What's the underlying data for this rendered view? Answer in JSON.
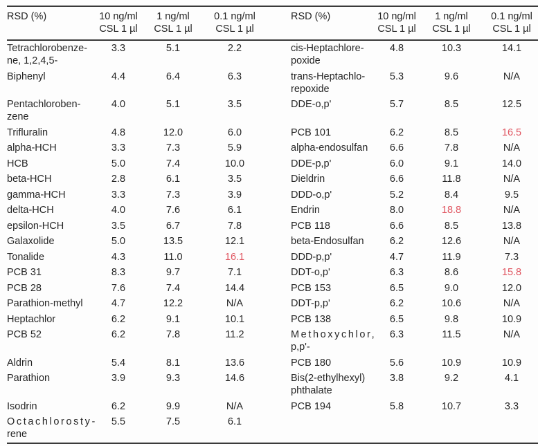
{
  "table": {
    "accent_red": "#e05560",
    "text_color": "#262626",
    "rule_color": "#3a3a3a",
    "header": {
      "rsd_label": "RSD (%)",
      "concentration_cols": [
        {
          "line1": "10 ng/ml",
          "line2": "CSL 1 µl"
        },
        {
          "line1": "1 ng/ml",
          "line2": "CSL 1 µl"
        },
        {
          "line1": "0.1 ng/ml",
          "line2": "CSL 1 µl"
        }
      ]
    },
    "rows": [
      {
        "left": {
          "name": "Tetrachlorobenze-\nne, 1,2,4,5-",
          "values": [
            "3.3",
            "5.1",
            "2.2"
          ],
          "red": []
        },
        "right": {
          "name": "cis-Heptachlore-\npoxide",
          "values": [
            "4.8",
            "10.3",
            "14.1"
          ],
          "red": []
        }
      },
      {
        "left": {
          "name": "Biphenyl",
          "values": [
            "4.4",
            "6.4",
            "6.3"
          ],
          "red": []
        },
        "right": {
          "name": "trans-Heptachlo-\nrepoxide",
          "values": [
            "5.3",
            "9.6",
            "N/A"
          ],
          "red": []
        }
      },
      {
        "left": {
          "name": "Pentachloroben-\nzene",
          "values": [
            "4.0",
            "5.1",
            "3.5"
          ],
          "red": []
        },
        "right": {
          "name": "DDE-o,p'",
          "values": [
            "5.7",
            "8.5",
            "12.5"
          ],
          "red": []
        }
      },
      {
        "left": {
          "name": "Trifluralin",
          "values": [
            "4.8",
            "12.0",
            "6.0"
          ],
          "red": []
        },
        "right": {
          "name": "PCB 101",
          "values": [
            "6.2",
            "8.5",
            "16.5"
          ],
          "red": [
            2
          ]
        }
      },
      {
        "left": {
          "name": "alpha-HCH",
          "values": [
            "3.3",
            "7.3",
            "5.9"
          ],
          "red": []
        },
        "right": {
          "name": "alpha-endosulfan",
          "values": [
            "6.6",
            "7.8",
            "N/A"
          ],
          "red": []
        }
      },
      {
        "left": {
          "name": "HCB",
          "values": [
            "5.0",
            "7.4",
            "10.0"
          ],
          "red": []
        },
        "right": {
          "name": "DDE-p,p'",
          "values": [
            "6.0",
            "9.1",
            "14.0"
          ],
          "red": []
        }
      },
      {
        "left": {
          "name": "beta-HCH",
          "values": [
            "2.8",
            "6.1",
            "3.5"
          ],
          "red": []
        },
        "right": {
          "name": "Dieldrin",
          "values": [
            "6.6",
            "11.8",
            "N/A"
          ],
          "red": []
        }
      },
      {
        "left": {
          "name": "gamma-HCH",
          "values": [
            "3.3",
            "7.3",
            "3.9"
          ],
          "red": []
        },
        "right": {
          "name": "DDD-o,p'",
          "values": [
            "5.2",
            "8.4",
            "9.5"
          ],
          "red": []
        }
      },
      {
        "left": {
          "name": "delta-HCH",
          "values": [
            "4.0",
            "7.6",
            "6.1"
          ],
          "red": []
        },
        "right": {
          "name": "Endrin",
          "values": [
            "8.0",
            "18.8",
            "N/A"
          ],
          "red": [
            1
          ]
        }
      },
      {
        "left": {
          "name": "epsilon-HCH",
          "values": [
            "3.5",
            "6.7",
            "7.8"
          ],
          "red": []
        },
        "right": {
          "name": "PCB 118",
          "values": [
            "6.6",
            "8.5",
            "13.8"
          ],
          "red": []
        }
      },
      {
        "left": {
          "name": "Galaxolide",
          "values": [
            "5.0",
            "13.5",
            "12.1"
          ],
          "red": []
        },
        "right": {
          "name": "beta-Endosulfan",
          "values": [
            "6.2",
            "12.6",
            "N/A"
          ],
          "red": []
        }
      },
      {
        "left": {
          "name": "Tonalide",
          "values": [
            "4.3",
            "11.0",
            "16.1"
          ],
          "red": [
            2
          ]
        },
        "right": {
          "name": "DDD-p,p'",
          "values": [
            "4.7",
            "11.9",
            "7.3"
          ],
          "red": []
        }
      },
      {
        "left": {
          "name": "PCB 31",
          "values": [
            "8.3",
            "9.7",
            "7.1"
          ],
          "red": []
        },
        "right": {
          "name": "DDT-o,p'",
          "values": [
            "6.3",
            "8.6",
            "15.8"
          ],
          "red": [
            2
          ]
        }
      },
      {
        "left": {
          "name": "PCB 28",
          "values": [
            "7.6",
            "7.4",
            "14.4"
          ],
          "red": []
        },
        "right": {
          "name": "PCB 153",
          "values": [
            "6.5",
            "9.0",
            "12.0"
          ],
          "red": []
        }
      },
      {
        "left": {
          "name": "Parathion-methyl",
          "values": [
            "4.7",
            "12.2",
            "N/A"
          ],
          "red": []
        },
        "right": {
          "name": "DDT-p,p'",
          "values": [
            "6.2",
            "10.6",
            "N/A"
          ],
          "red": []
        }
      },
      {
        "left": {
          "name": "Heptachlor",
          "values": [
            "6.2",
            "9.1",
            "10.1"
          ],
          "red": []
        },
        "right": {
          "name": "PCB 138",
          "values": [
            "6.5",
            "9.8",
            "10.9"
          ],
          "red": []
        }
      },
      {
        "left": {
          "name": "PCB 52",
          "values": [
            "6.2",
            "7.8",
            "11.2"
          ],
          "red": []
        },
        "right": {
          "name": "Methoxychlor,\np,p'-",
          "spread": true,
          "values": [
            "6.3",
            "11.5",
            "N/A"
          ],
          "red": []
        }
      },
      {
        "left": {
          "name": "Aldrin",
          "values": [
            "5.4",
            "8.1",
            "13.6"
          ],
          "red": []
        },
        "right": {
          "name": "PCB 180",
          "values": [
            "5.6",
            "10.9",
            "10.9"
          ],
          "red": []
        }
      },
      {
        "left": {
          "name": "Parathion",
          "values": [
            "3.9",
            "9.3",
            "14.6"
          ],
          "red": []
        },
        "right": {
          "name": "Bis(2-ethylhexyl)\nphthalate",
          "values": [
            "3.8",
            "9.2",
            "4.1"
          ],
          "red": []
        }
      },
      {
        "left": {
          "name": "Isodrin",
          "values": [
            "6.2",
            "9.9",
            "N/A"
          ],
          "red": []
        },
        "right": {
          "name": "PCB 194",
          "values": [
            "5.8",
            "10.7",
            "3.3"
          ],
          "red": []
        }
      },
      {
        "left": {
          "name": "Octachlorosty-\nrene",
          "spread": true,
          "values": [
            "5.5",
            "7.5",
            "6.1"
          ],
          "red": []
        },
        "right": null
      }
    ]
  }
}
